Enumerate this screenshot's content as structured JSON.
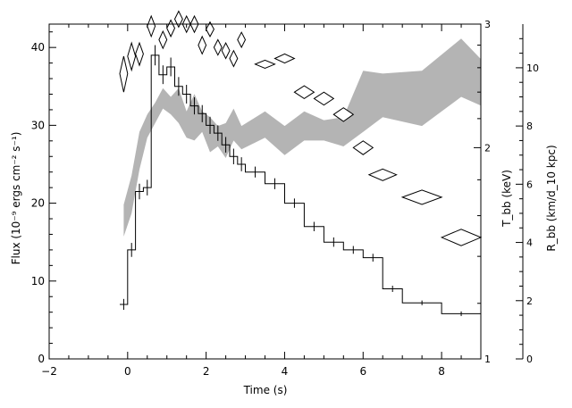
{
  "chart_data": {
    "type": "line",
    "xlabel": "Time (s)",
    "ylabel": "Flux (10⁻⁹ ergs cm⁻² s⁻¹)",
    "xlim": [
      -2,
      9
    ],
    "ylim": [
      0,
      43
    ],
    "x_ticks": [
      -2,
      0,
      2,
      4,
      6,
      8
    ],
    "y_ticks": [
      0,
      10,
      20,
      30,
      40
    ],
    "right_axes": [
      {
        "label": "T_bb (keV)",
        "scale": "log",
        "range": [
          1,
          3
        ],
        "ticks": [
          1,
          2,
          3
        ]
      },
      {
        "label": "R_bb (km/d_10 kpc)",
        "scale": "linear",
        "range": [
          0,
          11.5
        ],
        "ticks": [
          0,
          2,
          4,
          6,
          8,
          10
        ]
      }
    ],
    "series": [
      {
        "kind": "step",
        "axis": "flux",
        "points": [
          {
            "x0": -0.2,
            "x1": 0.0,
            "y": 7.0,
            "err": 0.7
          },
          {
            "x0": 0.0,
            "x1": 0.2,
            "y": 14.0,
            "err": 0.9
          },
          {
            "x0": 0.2,
            "x1": 0.4,
            "y": 21.5,
            "err": 1.0
          },
          {
            "x0": 0.4,
            "x1": 0.6,
            "y": 22.0,
            "err": 1.0
          },
          {
            "x0": 0.6,
            "x1": 0.8,
            "y": 39.0,
            "err": 1.3
          },
          {
            "x0": 0.8,
            "x1": 1.0,
            "y": 36.5,
            "err": 1.2
          },
          {
            "x0": 1.0,
            "x1": 1.2,
            "y": 37.5,
            "err": 1.2
          },
          {
            "x0": 1.2,
            "x1": 1.4,
            "y": 35.0,
            "err": 1.2
          },
          {
            "x0": 1.4,
            "x1": 1.6,
            "y": 34.0,
            "err": 1.2
          },
          {
            "x0": 1.6,
            "x1": 1.8,
            "y": 32.5,
            "err": 1.1
          },
          {
            "x0": 1.8,
            "x1": 2.0,
            "y": 31.5,
            "err": 1.1
          },
          {
            "x0": 2.0,
            "x1": 2.2,
            "y": 30.0,
            "err": 1.1
          },
          {
            "x0": 2.2,
            "x1": 2.4,
            "y": 29.0,
            "err": 1.0
          },
          {
            "x0": 2.4,
            "x1": 2.6,
            "y": 27.5,
            "err": 1.0
          },
          {
            "x0": 2.6,
            "x1": 2.8,
            "y": 26.0,
            "err": 1.0
          },
          {
            "x0": 2.8,
            "x1": 3.0,
            "y": 25.0,
            "err": 0.9
          },
          {
            "x0": 3.0,
            "x1": 3.5,
            "y": 24.0,
            "err": 0.7
          },
          {
            "x0": 3.5,
            "x1": 4.0,
            "y": 22.5,
            "err": 0.7
          },
          {
            "x0": 4.0,
            "x1": 4.5,
            "y": 20.0,
            "err": 0.6
          },
          {
            "x0": 4.5,
            "x1": 5.0,
            "y": 17.0,
            "err": 0.6
          },
          {
            "x0": 5.0,
            "x1": 5.5,
            "y": 15.0,
            "err": 0.6
          },
          {
            "x0": 5.5,
            "x1": 6.0,
            "y": 14.0,
            "err": 0.5
          },
          {
            "x0": 6.0,
            "x1": 6.5,
            "y": 13.0,
            "err": 0.5
          },
          {
            "x0": 6.5,
            "x1": 7.0,
            "y": 9.0,
            "err": 0.4
          },
          {
            "x0": 7.0,
            "x1": 8.0,
            "y": 7.2,
            "err": 0.3
          },
          {
            "x0": 8.0,
            "x1": 9.0,
            "y": 5.8,
            "err": 0.3
          }
        ]
      },
      {
        "kind": "diamond",
        "axis": "T_bb",
        "points": [
          {
            "x": -0.1,
            "dx": 0.1,
            "y": 2.55,
            "dy": 0.15
          },
          {
            "x": 0.1,
            "dx": 0.1,
            "y": 2.7,
            "dy": 0.12
          },
          {
            "x": 0.3,
            "dx": 0.1,
            "y": 2.72,
            "dy": 0.1
          },
          {
            "x": 0.6,
            "dx": 0.1,
            "y": 2.98,
            "dy": 0.1
          },
          {
            "x": 0.9,
            "dx": 0.1,
            "y": 2.85,
            "dy": 0.08
          },
          {
            "x": 1.1,
            "dx": 0.1,
            "y": 2.96,
            "dy": 0.08
          },
          {
            "x": 1.3,
            "dx": 0.1,
            "y": 3.05,
            "dy": 0.08
          },
          {
            "x": 1.5,
            "dx": 0.1,
            "y": 3.0,
            "dy": 0.08
          },
          {
            "x": 1.7,
            "dx": 0.1,
            "y": 3.0,
            "dy": 0.08
          },
          {
            "x": 1.9,
            "dx": 0.1,
            "y": 2.8,
            "dy": 0.08
          },
          {
            "x": 2.1,
            "dx": 0.1,
            "y": 2.95,
            "dy": 0.07
          },
          {
            "x": 2.3,
            "dx": 0.1,
            "y": 2.78,
            "dy": 0.07
          },
          {
            "x": 2.5,
            "dx": 0.1,
            "y": 2.75,
            "dy": 0.07
          },
          {
            "x": 2.7,
            "dx": 0.1,
            "y": 2.68,
            "dy": 0.07
          },
          {
            "x": 2.9,
            "dx": 0.1,
            "y": 2.85,
            "dy": 0.07
          },
          {
            "x": 3.5,
            "dx": 0.25,
            "y": 2.63,
            "dy": 0.035
          },
          {
            "x": 4.0,
            "dx": 0.25,
            "y": 2.68,
            "dy": 0.04
          },
          {
            "x": 4.5,
            "dx": 0.25,
            "y": 2.4,
            "dy": 0.05
          },
          {
            "x": 5.0,
            "dx": 0.25,
            "y": 2.35,
            "dy": 0.05
          },
          {
            "x": 5.5,
            "dx": 0.25,
            "y": 2.23,
            "dy": 0.05
          },
          {
            "x": 6.0,
            "dx": 0.25,
            "y": 2.0,
            "dy": 0.045
          },
          {
            "x": 6.5,
            "dx": 0.35,
            "y": 1.83,
            "dy": 0.035
          },
          {
            "x": 7.5,
            "dx": 0.5,
            "y": 1.7,
            "dy": 0.04
          },
          {
            "x": 8.5,
            "dx": 0.5,
            "y": 1.49,
            "dy": 0.04
          }
        ]
      },
      {
        "kind": "band",
        "axis": "R_bb",
        "x": [
          -0.1,
          0.1,
          0.3,
          0.5,
          0.7,
          0.9,
          1.1,
          1.3,
          1.5,
          1.7,
          1.9,
          2.1,
          2.3,
          2.5,
          2.7,
          2.9,
          3.5,
          4.0,
          4.5,
          5.0,
          5.5,
          6.0,
          6.5,
          7.5,
          8.5,
          9.0
        ],
        "lower": [
          4.2,
          5.0,
          6.5,
          7.6,
          8.1,
          8.6,
          8.4,
          8.1,
          7.6,
          7.5,
          7.8,
          7.1,
          7.3,
          6.9,
          7.5,
          7.2,
          7.6,
          7.0,
          7.5,
          7.5,
          7.3,
          7.8,
          8.3,
          8.0,
          9.0,
          8.7
        ],
        "upper": [
          5.3,
          6.3,
          7.8,
          8.4,
          8.8,
          9.3,
          9.0,
          9.3,
          8.5,
          9.1,
          8.5,
          8.3,
          8.0,
          8.1,
          8.6,
          8.0,
          8.5,
          8.0,
          8.5,
          8.2,
          8.3,
          9.9,
          9.8,
          9.9,
          11.0,
          10.3
        ]
      }
    ]
  }
}
